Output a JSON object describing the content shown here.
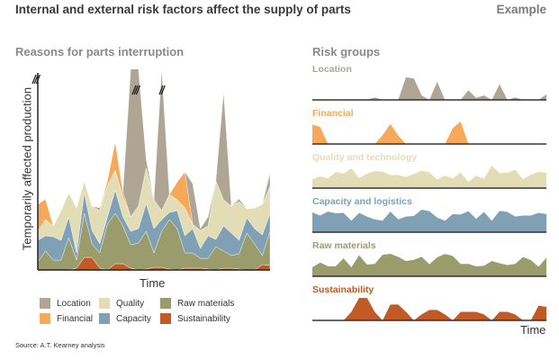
{
  "header": {
    "title": "Internal and external risk factors affect the supply of parts",
    "tag": "Example"
  },
  "source": "Source: A.T. Kearney analysis",
  "chart_data": [
    {
      "type": "area",
      "stacked": true,
      "title": "Reasons for parts interruption",
      "xlabel": "Time",
      "ylabel": "Temporarily affected production",
      "ylim": [
        0,
        219
      ],
      "y_axis_broken": true,
      "x": [
        0,
        1,
        2,
        3,
        4,
        5,
        6,
        7,
        8,
        9,
        10,
        11,
        12,
        13,
        14,
        15,
        16,
        17,
        18,
        19,
        20,
        21,
        22,
        23,
        24,
        25,
        26,
        27,
        28,
        29,
        30
      ],
      "series": [
        {
          "key": "sustainability",
          "name": "Sustainability",
          "color": "#c25a25",
          "values": [
            0,
            0,
            0,
            0,
            0,
            2,
            14,
            14,
            2,
            0,
            7,
            7,
            2,
            0,
            1,
            3,
            3,
            1,
            0,
            2,
            2,
            2,
            1,
            0,
            2,
            2,
            1,
            0,
            0,
            6,
            5
          ]
        },
        {
          "key": "raw",
          "name": "Raw materials",
          "color": "#9a9c6c",
          "values": [
            9,
            21,
            11,
            11,
            36,
            9,
            49,
            15,
            17,
            51,
            56,
            42,
            26,
            30,
            42,
            16,
            40,
            55,
            46,
            17,
            17,
            11,
            12,
            26,
            19,
            14,
            17,
            41,
            29,
            10,
            38
          ]
        },
        {
          "key": "capacity",
          "name": "Capacity",
          "color": "#7fa0b5",
          "values": [
            24,
            17,
            26,
            22,
            23,
            8,
            23,
            15,
            10,
            8,
            26,
            10,
            15,
            16,
            31,
            27,
            13,
            8,
            20,
            19,
            27,
            11,
            25,
            8,
            28,
            25,
            15,
            17,
            17,
            23,
            20
          ]
        },
        {
          "key": "quality",
          "name": "Quality",
          "color": "#e3ddb5",
          "values": [
            10,
            18,
            12,
            33,
            27,
            50,
            13,
            27,
            37,
            35,
            22,
            22,
            16,
            25,
            39,
            32,
            10,
            20,
            12,
            31,
            5,
            20,
            11,
            65,
            29,
            30,
            43,
            10,
            23,
            34,
            30
          ]
        },
        {
          "key": "financial",
          "name": "Financial",
          "color": "#f7a85a",
          "values": [
            30,
            23,
            0,
            0,
            0,
            0,
            0,
            0,
            0,
            6,
            32,
            6,
            0,
            0,
            0,
            0,
            0,
            0,
            20,
            40,
            0,
            0,
            0,
            0,
            0,
            0,
            0,
            0,
            0,
            0,
            0
          ]
        },
        {
          "key": "location",
          "name": "Location",
          "color": "#aea595",
          "values": [
            0,
            0,
            0,
            0,
            0,
            0,
            0,
            0,
            3,
            0,
            0,
            0,
            250,
            230,
            10,
            0,
            160,
            0,
            0,
            0,
            45,
            2,
            10,
            0,
            120,
            0,
            3,
            0,
            0,
            0,
            15
          ]
        }
      ],
      "legend": [
        {
          "label": "Location",
          "color": "#aea595"
        },
        {
          "label": "Quality",
          "color": "#e3ddb5"
        },
        {
          "label": "Raw materials",
          "color": "#9a9c6c"
        },
        {
          "label": "Financial",
          "color": "#f7a85a"
        },
        {
          "label": "Capacity",
          "color": "#7fa0b5"
        },
        {
          "label": "Sustainability",
          "color": "#c25a25"
        }
      ]
    },
    {
      "type": "area",
      "title": "Risk groups",
      "xlabel": "Time",
      "panels": [
        {
          "label": "Location",
          "series": "location",
          "color": "#aea595"
        },
        {
          "label": "Financial",
          "series": "financial",
          "color": "#f7a85a"
        },
        {
          "label": "Quality and technology",
          "series": "quality",
          "color": "#e3ddb5"
        },
        {
          "label": "Capacity and logistics",
          "series": "capacity",
          "color": "#7fa0b5"
        },
        {
          "label": "Raw materials",
          "series": "raw",
          "color": "#9a9c6c"
        },
        {
          "label": "Sustainability",
          "series": "sustainability",
          "color": "#c25a25"
        }
      ]
    }
  ]
}
